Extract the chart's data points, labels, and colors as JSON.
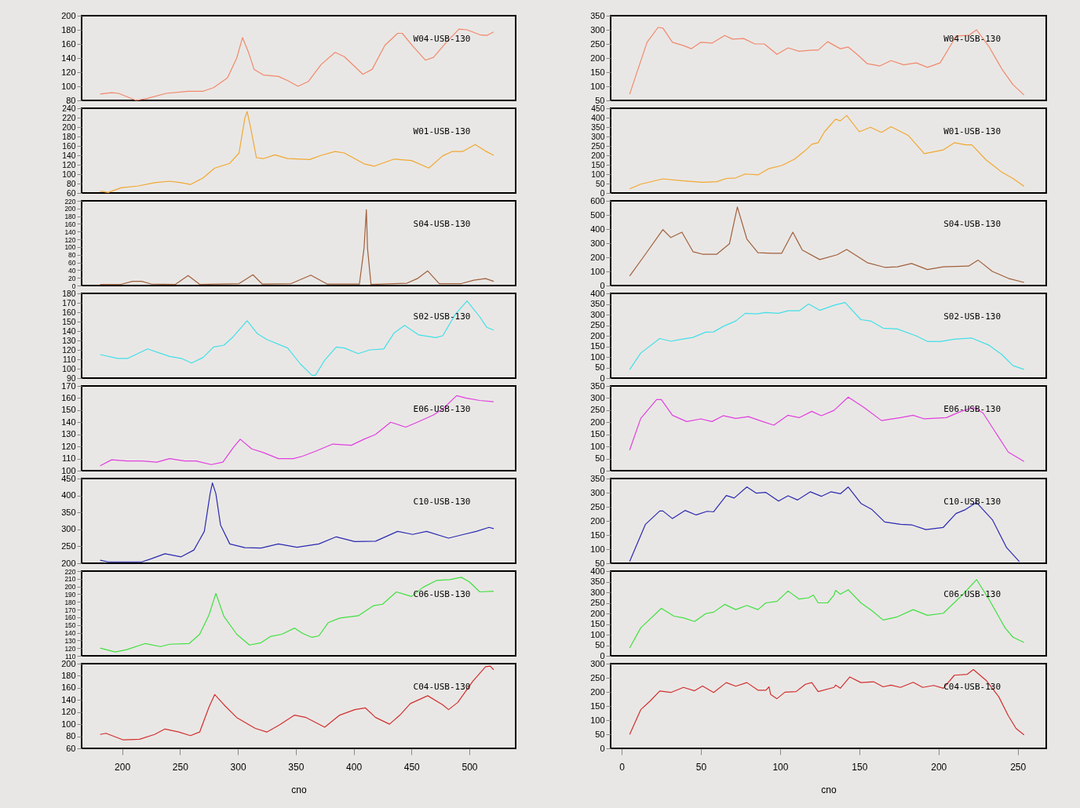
{
  "chart_data": [
    {
      "type": "line",
      "xlim": [
        165,
        540
      ],
      "ylim": [
        80,
        200
      ],
      "yticks": [
        80,
        100,
        120,
        140,
        160,
        180,
        200
      ],
      "tick_labels": "y",
      "series": [
        {
          "name": "W04-USB-130",
          "color": "#f0896c",
          "x": [
            181,
            191,
            197,
            212,
            222,
            238,
            257,
            270,
            279,
            291,
            299,
            304,
            309,
            314,
            322,
            335,
            343,
            352,
            361,
            372,
            384,
            392,
            408,
            416,
            427,
            438,
            442,
            451,
            462,
            469,
            480,
            491,
            498,
            509,
            515,
            521
          ],
          "values": [
            89,
            91,
            90,
            80,
            83,
            90,
            93,
            93,
            98,
            112,
            140,
            169,
            149,
            124,
            116,
            114,
            108,
            100,
            107,
            131,
            148,
            142,
            117,
            124,
            158,
            175,
            175,
            157,
            137,
            141,
            162,
            181,
            180,
            173,
            172,
            177
          ]
        }
      ]
    },
    {
      "type": "line",
      "xlim": [
        165,
        540
      ],
      "ylim": [
        60,
        240
      ],
      "yticks": [
        60,
        80,
        100,
        120,
        140,
        160,
        180,
        200,
        220,
        240
      ],
      "tick_labels": "y",
      "series": [
        {
          "name": "W01-USB-130",
          "color": "#f0a830",
          "x": [
            181,
            188,
            199,
            214,
            228,
            241,
            251,
            259,
            270,
            280,
            293,
            301,
            306,
            308,
            311,
            316,
            322,
            332,
            343,
            362,
            372,
            384,
            392,
            409,
            418,
            435,
            450,
            465,
            477,
            485,
            494,
            505,
            514,
            521
          ],
          "values": [
            64,
            61,
            71,
            75,
            82,
            85,
            82,
            78,
            92,
            113,
            123,
            145,
            219,
            233,
            199,
            135,
            133,
            141,
            133,
            131,
            140,
            148,
            145,
            122,
            117,
            132,
            129,
            113,
            139,
            148,
            148,
            163,
            149,
            140
          ]
        }
      ]
    },
    {
      "type": "line",
      "xlim": [
        165,
        540
      ],
      "ylim": [
        0,
        220
      ],
      "yticks": [
        0,
        20,
        40,
        60,
        80,
        100,
        120,
        140,
        160,
        180,
        200,
        220
      ],
      "tick_labels": "y",
      "series": [
        {
          "name": "S04-USB-130",
          "color": "#a0603c",
          "x": [
            181,
            199,
            209,
            217,
            225,
            246,
            257,
            267,
            301,
            313,
            321,
            346,
            363,
            377,
            405,
            409,
            411,
            412,
            415,
            446,
            455,
            464,
            474,
            493,
            504,
            514,
            521
          ],
          "values": [
            3,
            3,
            11,
            11,
            4,
            3,
            26,
            3,
            5,
            28,
            4,
            5,
            27,
            4,
            4,
            97,
            197,
            97,
            3,
            6,
            18,
            38,
            5,
            5,
            14,
            18,
            11
          ]
        }
      ]
    },
    {
      "type": "line",
      "xlim": [
        165,
        540
      ],
      "ylim": [
        90,
        180
      ],
      "yticks": [
        90,
        100,
        110,
        120,
        130,
        140,
        150,
        160,
        170,
        180
      ],
      "tick_labels": "y",
      "series": [
        {
          "name": "S02-USB-130",
          "color": "#40e0e8",
          "x": [
            181,
            196,
            205,
            222,
            241,
            251,
            260,
            270,
            279,
            288,
            296,
            308,
            317,
            325,
            343,
            354,
            364,
            367,
            375,
            385,
            392,
            404,
            414,
            426,
            435,
            444,
            456,
            471,
            477,
            488,
            498,
            509,
            515,
            521
          ],
          "values": [
            115,
            111,
            111,
            121,
            113,
            111,
            106,
            112,
            123,
            125,
            134,
            151,
            137,
            131,
            122,
            105,
            93,
            93,
            109,
            123,
            122,
            116,
            120,
            121,
            138,
            146,
            136,
            133,
            135,
            158,
            172,
            155,
            144,
            141
          ]
        }
      ]
    },
    {
      "type": "line",
      "xlim": [
        165,
        540
      ],
      "ylim": [
        100,
        170
      ],
      "yticks": [
        100,
        110,
        120,
        130,
        140,
        150,
        160,
        170
      ],
      "tick_labels": "y",
      "series": [
        {
          "name": "E06-USB-130",
          "color": "#e040e0",
          "x": [
            181,
            191,
            204,
            217,
            230,
            241,
            254,
            264,
            277,
            287,
            296,
            302,
            312,
            322,
            335,
            348,
            356,
            367,
            382,
            398,
            409,
            419,
            432,
            445,
            455,
            469,
            477,
            489,
            497,
            509,
            521
          ],
          "values": [
            104,
            109,
            108,
            108,
            107,
            110,
            108,
            108,
            105,
            107,
            119,
            126,
            118,
            115,
            110,
            110,
            112,
            116,
            122,
            121,
            126,
            130,
            140,
            136,
            140,
            146,
            151,
            162,
            160,
            158,
            157
          ]
        }
      ]
    },
    {
      "type": "line",
      "xlim": [
        165,
        540
      ],
      "ylim": [
        200,
        450
      ],
      "yticks": [
        200,
        250,
        300,
        350,
        400,
        450
      ],
      "tick_labels": "y",
      "series": [
        {
          "name": "C10-USB-130",
          "color": "#2a2ab0",
          "x": [
            181,
            188,
            217,
            225,
            237,
            251,
            262,
            271,
            276,
            278,
            281,
            285,
            293,
            306,
            320,
            335,
            351,
            370,
            385,
            401,
            419,
            438,
            451,
            463,
            482,
            495,
            506,
            517,
            521
          ],
          "values": [
            209,
            204,
            204,
            213,
            228,
            219,
            239,
            294,
            405,
            437,
            405,
            313,
            257,
            246,
            245,
            257,
            247,
            257,
            278,
            264,
            265,
            294,
            285,
            294,
            274,
            285,
            294,
            306,
            302
          ]
        }
      ]
    },
    {
      "type": "line",
      "xlim": [
        165,
        540
      ],
      "ylim": [
        110,
        220
      ],
      "yticks": [
        110,
        120,
        130,
        140,
        150,
        160,
        170,
        180,
        190,
        200,
        210,
        220
      ],
      "tick_labels": "y",
      "series": [
        {
          "name": "C06-USB-130",
          "color": "#40e040",
          "x": [
            181,
            194,
            204,
            220,
            233,
            241,
            258,
            267,
            275,
            281,
            288,
            299,
            310,
            320,
            328,
            338,
            349,
            356,
            364,
            370,
            378,
            388,
            404,
            417,
            425,
            437,
            450,
            460,
            472,
            483,
            493,
            500,
            509,
            521
          ],
          "values": [
            120,
            115,
            118,
            126,
            122,
            125,
            126,
            138,
            163,
            191,
            161,
            138,
            124,
            127,
            135,
            138,
            146,
            139,
            134,
            136,
            153,
            159,
            162,
            175,
            177,
            193,
            187,
            199,
            208,
            209,
            212,
            206,
            193,
            194
          ]
        }
      ]
    },
    {
      "type": "line",
      "xlim": [
        165,
        540
      ],
      "xticks": [
        200,
        250,
        300,
        350,
        400,
        450,
        500
      ],
      "xlabel": "cno",
      "ylim": [
        60,
        200
      ],
      "yticks": [
        60,
        80,
        100,
        120,
        140,
        160,
        180,
        200
      ],
      "series": [
        {
          "name": "C04-USB-130",
          "color": "#d03030",
          "x": [
            181,
            186,
            201,
            215,
            228,
            237,
            249,
            259,
            267,
            275,
            280,
            288,
            299,
            315,
            325,
            336,
            349,
            359,
            375,
            388,
            401,
            410,
            419,
            431,
            440,
            449,
            464,
            477,
            482,
            490,
            503,
            514,
            518,
            521
          ],
          "values": [
            83,
            85,
            74,
            75,
            83,
            92,
            87,
            81,
            87,
            128,
            149,
            132,
            111,
            93,
            87,
            99,
            115,
            111,
            95,
            115,
            124,
            127,
            111,
            100,
            115,
            134,
            147,
            132,
            124,
            136,
            171,
            195,
            196,
            190
          ]
        }
      ]
    },
    {
      "type": "line",
      "xlim": [
        -7,
        268
      ],
      "ylim": [
        50,
        350
      ],
      "yticks": [
        50,
        100,
        150,
        200,
        250,
        300,
        350
      ],
      "tick_labels": "y",
      "series": [
        {
          "name": "W04-USB-130",
          "color": "#f0896c",
          "x": [
            5,
            10,
            16,
            23,
            26,
            32,
            39,
            44,
            50,
            57,
            65,
            70,
            77,
            84,
            90,
            98,
            105,
            112,
            120,
            124,
            130,
            138,
            143,
            149,
            155,
            163,
            170,
            178,
            186,
            193,
            201,
            207,
            211,
            219,
            224,
            232,
            240,
            247,
            254
          ],
          "values": [
            72,
            156,
            256,
            309,
            306,
            256,
            244,
            233,
            256,
            253,
            280,
            267,
            269,
            250,
            250,
            213,
            236,
            224,
            228,
            228,
            258,
            233,
            239,
            211,
            180,
            172,
            191,
            176,
            183,
            167,
            183,
            239,
            278,
            280,
            300,
            239,
            161,
            106,
            69
          ]
        }
      ]
    },
    {
      "type": "line",
      "xlim": [
        -7,
        268
      ],
      "ylim": [
        0,
        450
      ],
      "yticks": [
        0,
        50,
        100,
        150,
        200,
        250,
        300,
        350,
        400,
        450
      ],
      "tick_labels": "y",
      "series": [
        {
          "name": "W01-USB-130",
          "color": "#f0a830",
          "x": [
            5,
            12,
            26,
            38,
            51,
            60,
            66,
            72,
            78,
            86,
            93,
            101,
            109,
            117,
            120,
            124,
            128,
            135,
            138,
            142,
            150,
            157,
            164,
            170,
            181,
            191,
            203,
            210,
            217,
            221,
            230,
            240,
            247,
            254
          ],
          "values": [
            22,
            47,
            75,
            65,
            57,
            60,
            77,
            80,
            101,
            96,
            130,
            146,
            179,
            234,
            259,
            267,
            325,
            392,
            383,
            412,
            325,
            349,
            322,
            352,
            305,
            209,
            229,
            267,
            256,
            256,
            176,
            110,
            77,
            35
          ]
        }
      ]
    },
    {
      "type": "line",
      "xlim": [
        -7,
        268
      ],
      "ylim": [
        0,
        600
      ],
      "yticks": [
        0,
        100,
        200,
        300,
        400,
        500,
        600
      ],
      "tick_labels": "y",
      "series": [
        {
          "name": "S04-USB-130",
          "color": "#a0603c",
          "x": [
            5,
            14,
            26,
            31,
            38,
            45,
            51,
            60,
            68,
            73,
            79,
            86,
            95,
            101,
            108,
            114,
            125,
            136,
            142,
            155,
            166,
            174,
            183,
            193,
            203,
            219,
            225,
            234,
            244,
            254
          ],
          "values": [
            67,
            207,
            396,
            340,
            378,
            240,
            222,
            222,
            296,
            556,
            329,
            233,
            229,
            229,
            378,
            251,
            184,
            218,
            256,
            162,
            129,
            133,
            156,
            113,
            133,
            138,
            180,
            100,
            51,
            22
          ]
        }
      ]
    },
    {
      "type": "line",
      "xlim": [
        -7,
        268
      ],
      "ylim": [
        0,
        400
      ],
      "yticks": [
        0,
        50,
        100,
        150,
        200,
        250,
        300,
        350,
        400
      ],
      "tick_labels": "y",
      "series": [
        {
          "name": "S02-USB-130",
          "color": "#40e0e8",
          "x": [
            5,
            12,
            24,
            31,
            38,
            45,
            53,
            58,
            64,
            72,
            78,
            85,
            91,
            99,
            105,
            112,
            118,
            125,
            134,
            141,
            151,
            157,
            165,
            174,
            186,
            193,
            201,
            210,
            221,
            232,
            240,
            247,
            254
          ],
          "values": [
            40,
            118,
            187,
            174,
            184,
            192,
            217,
            218,
            244,
            270,
            306,
            303,
            310,
            306,
            318,
            318,
            350,
            320,
            344,
            357,
            276,
            270,
            236,
            232,
            199,
            173,
            173,
            184,
            189,
            155,
            111,
            59,
            41
          ]
        }
      ]
    },
    {
      "type": "line",
      "xlim": [
        -7,
        268
      ],
      "ylim": [
        0,
        350
      ],
      "yticks": [
        0,
        50,
        100,
        150,
        200,
        250,
        300,
        350
      ],
      "tick_labels": "y",
      "series": [
        {
          "name": "E06-USB-130",
          "color": "#e040e0",
          "x": [
            5,
            12,
            22,
            25,
            32,
            41,
            50,
            57,
            64,
            72,
            80,
            89,
            96,
            105,
            112,
            120,
            126,
            134,
            143,
            153,
            164,
            176,
            184,
            191,
            205,
            213,
            222,
            228,
            236,
            244,
            254
          ],
          "values": [
            85,
            216,
            294,
            294,
            229,
            203,
            214,
            203,
            227,
            216,
            223,
            203,
            188,
            229,
            219,
            245,
            227,
            249,
            304,
            261,
            207,
            219,
            229,
            214,
            219,
            242,
            261,
            239,
            158,
            77,
            38
          ]
        }
      ]
    },
    {
      "type": "line",
      "xlim": [
        -7,
        268
      ],
      "ylim": [
        50,
        350
      ],
      "yticks": [
        50,
        100,
        150,
        200,
        250,
        300,
        350
      ],
      "tick_labels": "y",
      "series": [
        {
          "name": "C10-USB-130",
          "color": "#2a2ab0",
          "x": [
            5,
            15,
            24,
            26,
            32,
            40,
            47,
            54,
            58,
            66,
            71,
            79,
            85,
            91,
            99,
            105,
            111,
            119,
            126,
            132,
            138,
            143,
            151,
            158,
            166,
            176,
            183,
            192,
            203,
            211,
            217,
            224,
            234,
            243,
            251
          ],
          "values": [
            56,
            188,
            235,
            235,
            208,
            237,
            221,
            234,
            232,
            290,
            281,
            320,
            298,
            301,
            270,
            289,
            274,
            303,
            287,
            303,
            296,
            320,
            262,
            240,
            196,
            188,
            186,
            169,
            177,
            226,
            240,
            265,
            204,
            105,
            56
          ]
        }
      ]
    },
    {
      "type": "line",
      "xlim": [
        -7,
        268
      ],
      "ylim": [
        0,
        400
      ],
      "yticks": [
        0,
        50,
        100,
        150,
        200,
        250,
        300,
        350,
        400
      ],
      "tick_labels": "y",
      "series": [
        {
          "name": "C06-USB-130",
          "color": "#40e040",
          "x": [
            5,
            12,
            25,
            33,
            39,
            46,
            53,
            58,
            65,
            72,
            79,
            86,
            91,
            98,
            105,
            112,
            118,
            121,
            124,
            130,
            134,
            135,
            138,
            143,
            151,
            158,
            165,
            174,
            184,
            193,
            203,
            215,
            224,
            232,
            242,
            247,
            254
          ],
          "values": [
            37,
            132,
            224,
            187,
            179,
            162,
            199,
            206,
            243,
            218,
            238,
            218,
            250,
            257,
            306,
            268,
            274,
            287,
            250,
            250,
            287,
            309,
            291,
            312,
            250,
            213,
            169,
            184,
            218,
            191,
            201,
            287,
            360,
            265,
            132,
            88,
            63
          ]
        }
      ]
    },
    {
      "type": "line",
      "xlim": [
        -7,
        268
      ],
      "xticks": [
        0,
        50,
        100,
        150,
        200,
        250
      ],
      "xlabel": "cno",
      "ylim": [
        0,
        300
      ],
      "yticks": [
        0,
        50,
        100,
        150,
        200,
        250,
        300
      ],
      "series": [
        {
          "name": "C04-USB-130",
          "color": "#d03030",
          "x": [
            5,
            12,
            18,
            24,
            31,
            39,
            46,
            51,
            58,
            66,
            72,
            79,
            86,
            91,
            93,
            94,
            98,
            103,
            110,
            116,
            120,
            124,
            134,
            135,
            138,
            144,
            151,
            159,
            165,
            170,
            176,
            184,
            190,
            197,
            203,
            210,
            218,
            222,
            230,
            238,
            244,
            249,
            254
          ],
          "values": [
            49,
            137,
            168,
            203,
            198,
            216,
            204,
            221,
            198,
            233,
            220,
            233,
            206,
            206,
            218,
            191,
            176,
            199,
            201,
            227,
            233,
            201,
            216,
            224,
            213,
            253,
            233,
            236,
            218,
            224,
            216,
            234,
            216,
            223,
            213,
            259,
            262,
            279,
            241,
            183,
            116,
            70,
            48
          ]
        }
      ]
    }
  ]
}
